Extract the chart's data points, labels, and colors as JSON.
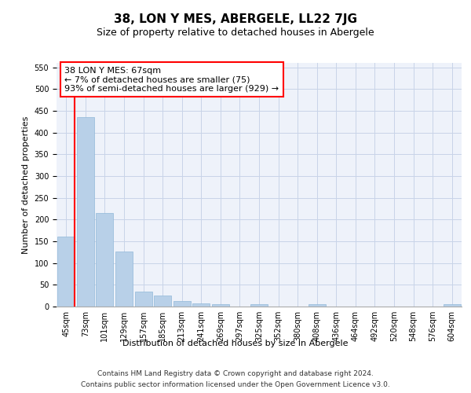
{
  "title": "38, LON Y MES, ABERGELE, LL22 7JG",
  "subtitle": "Size of property relative to detached houses in Abergele",
  "xlabel": "Distribution of detached houses by size in Abergele",
  "ylabel": "Number of detached properties",
  "categories": [
    "45sqm",
    "73sqm",
    "101sqm",
    "129sqm",
    "157sqm",
    "185sqm",
    "213sqm",
    "241sqm",
    "269sqm",
    "297sqm",
    "325sqm",
    "352sqm",
    "380sqm",
    "408sqm",
    "436sqm",
    "464sqm",
    "492sqm",
    "520sqm",
    "548sqm",
    "576sqm",
    "604sqm"
  ],
  "values": [
    160,
    435,
    215,
    127,
    35,
    25,
    12,
    7,
    6,
    0,
    5,
    0,
    0,
    5,
    0,
    0,
    0,
    0,
    0,
    0,
    5
  ],
  "bar_color": "#b8d0e8",
  "bar_edge_color": "#90b8d8",
  "annotation_line_color": "red",
  "annotation_box_text": "38 LON Y MES: 67sqm\n← 7% of detached houses are smaller (75)\n93% of semi-detached houses are larger (929) →",
  "ylim": [
    0,
    560
  ],
  "yticks": [
    0,
    50,
    100,
    150,
    200,
    250,
    300,
    350,
    400,
    450,
    500,
    550
  ],
  "footer_line1": "Contains HM Land Registry data © Crown copyright and database right 2024.",
  "footer_line2": "Contains public sector information licensed under the Open Government Licence v3.0.",
  "background_color": "#eef2fa",
  "grid_color": "#c8d4e8",
  "title_fontsize": 11,
  "subtitle_fontsize": 9,
  "axis_label_fontsize": 8,
  "tick_fontsize": 7,
  "annotation_fontsize": 8,
  "footer_fontsize": 6.5
}
